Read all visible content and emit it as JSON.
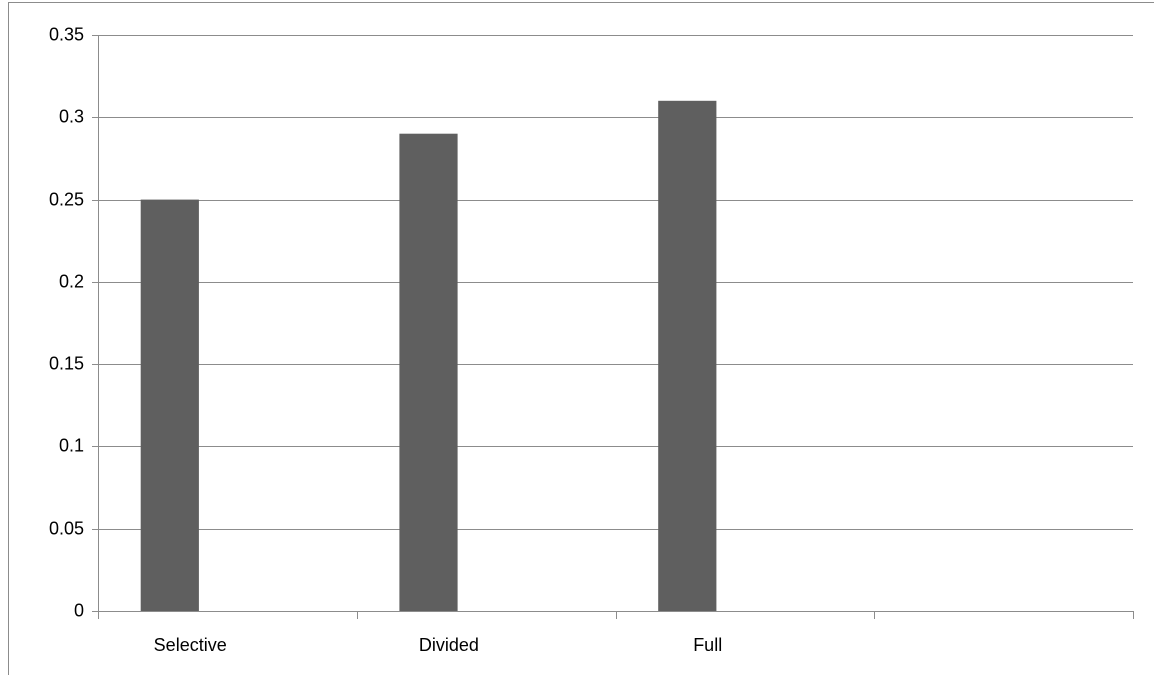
{
  "chart_data": {
    "type": "bar",
    "title": "",
    "xlabel": "",
    "ylabel": "",
    "categories": [
      "Selective",
      "Divided",
      "Full",
      ""
    ],
    "values": [
      0.25,
      0.29,
      0.31,
      null
    ],
    "ylim": [
      0,
      0.35
    ],
    "yticks": [
      0,
      0.05,
      0.1,
      0.15,
      0.2,
      0.25,
      0.3,
      0.35
    ],
    "ytick_labels": [
      "0",
      "0.05",
      "0.1",
      "0.15",
      "0.2",
      "0.25",
      "0.3",
      "0.35"
    ],
    "grid": true,
    "legend": "none",
    "bar_color": "#5f5f5f",
    "grid_color": "#8c8c8c"
  }
}
